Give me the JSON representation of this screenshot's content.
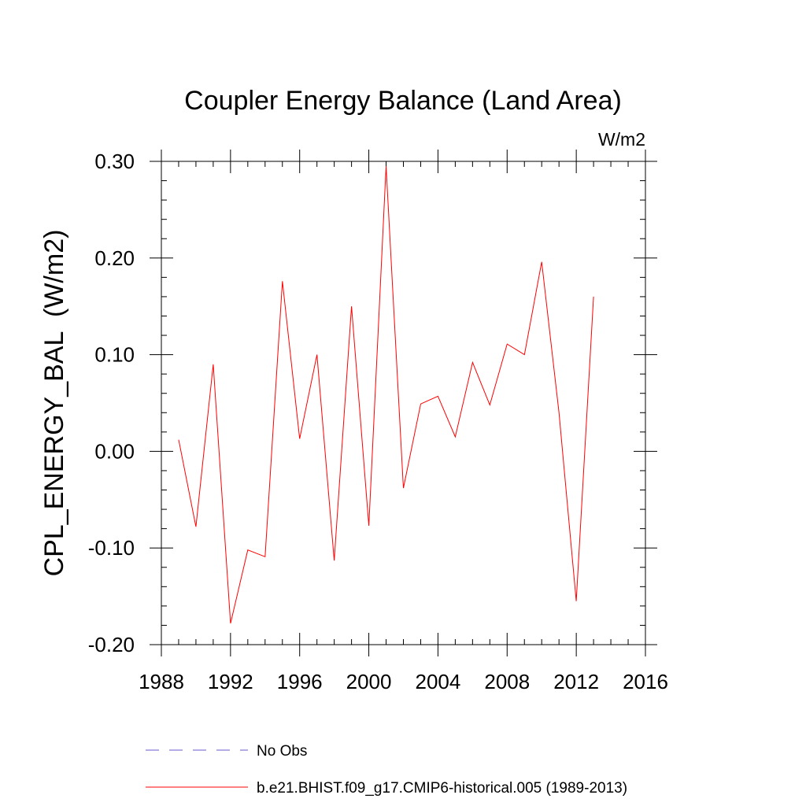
{
  "chart_data": {
    "type": "line",
    "title": "Coupler Energy Balance (Land Area)",
    "units_label": "W/m2",
    "ylabel": "CPL_ENERGY_BAL  (W/m2)",
    "xlabel": "",
    "xlim": [
      1988,
      2016
    ],
    "ylim": [
      -0.2,
      0.3
    ],
    "x_ticks": [
      1988,
      1992,
      1996,
      2000,
      2004,
      2008,
      2012,
      2016
    ],
    "x_tick_labels": [
      "1988",
      "1992",
      "1996",
      "2000",
      "2004",
      "2008",
      "2012",
      "2016"
    ],
    "y_ticks": [
      -0.2,
      -0.1,
      0.0,
      0.1,
      0.2,
      0.3
    ],
    "y_tick_labels": [
      "-0.20",
      "-0.10",
      "0.00",
      "0.10",
      "0.20",
      "0.30"
    ],
    "grid": false,
    "legend_position": "bottom",
    "series": [
      {
        "name": "No Obs",
        "color": "#6a5acd",
        "style": "dashed",
        "x": [],
        "values": []
      },
      {
        "name": "b.e21.BHIST.f09_g17.CMIP6-historical.005 (1989-2013)",
        "color": "#ff0000",
        "style": "solid",
        "x": [
          1989,
          1990,
          1991,
          1992,
          1993,
          1994,
          1995,
          1996,
          1997,
          1998,
          1999,
          2000,
          2001,
          2002,
          2003,
          2004,
          2005,
          2006,
          2007,
          2008,
          2009,
          2010,
          2011,
          2012,
          2013
        ],
        "values": [
          0.012,
          -0.078,
          0.09,
          -0.178,
          -0.102,
          -0.109,
          0.176,
          0.013,
          0.1,
          -0.113,
          0.15,
          -0.077,
          0.295,
          -0.038,
          0.049,
          0.057,
          0.015,
          0.092,
          0.048,
          0.111,
          0.1,
          0.196,
          0.04,
          -0.155,
          0.16
        ]
      }
    ]
  }
}
